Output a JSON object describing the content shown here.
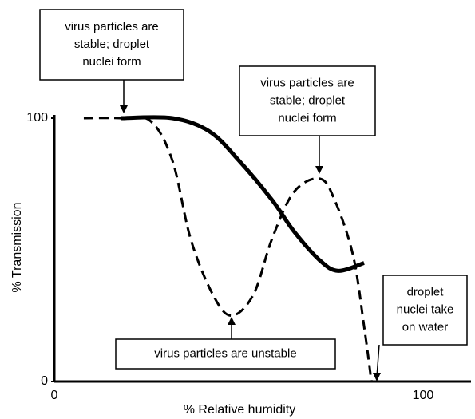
{
  "chart_data": {
    "type": "line",
    "x_label": "% Relative humidity",
    "y_label": "% Transmission",
    "xlim": [
      0,
      113
    ],
    "ylim": [
      0,
      100
    ],
    "xticks": [
      0,
      100
    ],
    "yticks": [
      0,
      100
    ],
    "series": [
      {
        "color": "#000000",
        "style": "solid",
        "x": [
          18,
          32,
          42,
          50,
          59,
          65,
          72,
          77,
          84
        ],
        "values": [
          100,
          100,
          95,
          84,
          69,
          57,
          46,
          42,
          45
        ]
      },
      {
        "color": "#000000",
        "style": "dashed",
        "x": [
          8,
          18,
          26,
          32,
          37,
          43,
          48,
          54,
          59,
          65,
          72,
          76,
          81,
          84,
          86
        ],
        "values": [
          100,
          100,
          99,
          84,
          54,
          33,
          25,
          33,
          54,
          72,
          77,
          69,
          48,
          21,
          0
        ]
      }
    ],
    "annotations": [
      {
        "lines": [
          "virus particles are",
          "stable; droplet",
          "nuclei form"
        ]
      },
      {
        "lines": [
          "virus particles are",
          "stable; droplet",
          "nuclei form"
        ]
      },
      {
        "lines": [
          "virus particles are unstable"
        ]
      },
      {
        "lines": [
          "droplet",
          "nuclei take",
          "on water"
        ]
      }
    ]
  }
}
